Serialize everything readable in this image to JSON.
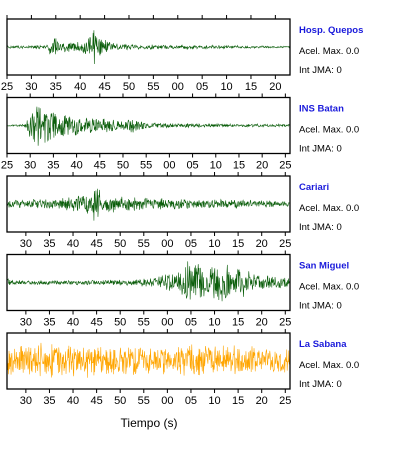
{
  "chart_data": {
    "type": "line",
    "xlabel": "Tiempo (s)",
    "colors": {
      "trace_green": "#0b5e0b",
      "trace_orange": "#ffa500",
      "station_name": "#1a1adb",
      "frame": "#000000"
    },
    "panels": [
      {
        "station": "Hosp. Quepos",
        "accel_label": "Acel. Max. 0.0",
        "jma_label": "Int JMA: 0",
        "color": "#0b5e0b",
        "tick_labels": [
          "25",
          "30",
          "35",
          "40",
          "45",
          "50",
          "55",
          "00",
          "05",
          "10",
          "15",
          "20"
        ],
        "xlim": [
          25,
          83
        ],
        "envelope": [
          {
            "x": 25,
            "a": 0.06
          },
          {
            "x": 33,
            "a": 0.07
          },
          {
            "x": 34,
            "a": 0.35
          },
          {
            "x": 35,
            "a": 0.45
          },
          {
            "x": 36,
            "a": 0.2
          },
          {
            "x": 40,
            "a": 0.22
          },
          {
            "x": 42,
            "a": 0.5
          },
          {
            "x": 43,
            "a": 0.9
          },
          {
            "x": 44,
            "a": 0.55
          },
          {
            "x": 46,
            "a": 0.2
          },
          {
            "x": 52,
            "a": 0.1
          },
          {
            "x": 83,
            "a": 0.04
          }
        ]
      },
      {
        "station": "INS Batan",
        "accel_label": "Acel. Max. 0.0",
        "jma_label": "Int JMA: 0",
        "color": "#0b5e0b",
        "tick_labels": [
          "25",
          "30",
          "35",
          "40",
          "45",
          "50",
          "55",
          "00",
          "05",
          "10",
          "15",
          "20",
          "25"
        ],
        "xlim": [
          25,
          86
        ],
        "envelope": [
          {
            "x": 25,
            "a": 0.03
          },
          {
            "x": 29,
            "a": 0.05
          },
          {
            "x": 30,
            "a": 0.6
          },
          {
            "x": 31,
            "a": 0.95
          },
          {
            "x": 33,
            "a": 0.75
          },
          {
            "x": 35,
            "a": 0.6
          },
          {
            "x": 37,
            "a": 0.5
          },
          {
            "x": 40,
            "a": 0.4
          },
          {
            "x": 45,
            "a": 0.3
          },
          {
            "x": 50,
            "a": 0.2
          },
          {
            "x": 52,
            "a": 0.32
          },
          {
            "x": 55,
            "a": 0.12
          },
          {
            "x": 65,
            "a": 0.08
          },
          {
            "x": 86,
            "a": 0.05
          }
        ]
      },
      {
        "station": "Cariari",
        "accel_label": "Acel. Max. 0.0",
        "jma_label": "Int JMA: 0",
        "color": "#0b5e0b",
        "tick_labels": [
          "30",
          "35",
          "40",
          "45",
          "50",
          "55",
          "00",
          "05",
          "10",
          "15",
          "20",
          "25"
        ],
        "xlim": [
          26,
          86
        ],
        "envelope": [
          {
            "x": 26,
            "a": 0.15
          },
          {
            "x": 35,
            "a": 0.22
          },
          {
            "x": 40,
            "a": 0.3
          },
          {
            "x": 44,
            "a": 0.5
          },
          {
            "x": 45,
            "a": 0.95
          },
          {
            "x": 46,
            "a": 0.6
          },
          {
            "x": 48,
            "a": 0.35
          },
          {
            "x": 52,
            "a": 0.3
          },
          {
            "x": 60,
            "a": 0.22
          },
          {
            "x": 70,
            "a": 0.18
          },
          {
            "x": 80,
            "a": 0.15
          },
          {
            "x": 86,
            "a": 0.12
          }
        ]
      },
      {
        "station": "San Miguel",
        "accel_label": "Acel. Max. 0.0",
        "jma_label": "Int JMA: 0",
        "color": "#0b5e0b",
        "tick_labels": [
          "30",
          "35",
          "40",
          "45",
          "50",
          "55",
          "00",
          "05",
          "10",
          "15",
          "20",
          "25"
        ],
        "xlim": [
          26,
          86
        ],
        "envelope": [
          {
            "x": 26,
            "a": 0.25
          },
          {
            "x": 27,
            "a": 0.1
          },
          {
            "x": 35,
            "a": 0.08
          },
          {
            "x": 45,
            "a": 0.1
          },
          {
            "x": 52,
            "a": 0.12
          },
          {
            "x": 58,
            "a": 0.25
          },
          {
            "x": 62,
            "a": 0.5
          },
          {
            "x": 64,
            "a": 0.95
          },
          {
            "x": 68,
            "a": 0.7
          },
          {
            "x": 72,
            "a": 0.85
          },
          {
            "x": 76,
            "a": 0.6
          },
          {
            "x": 80,
            "a": 0.35
          },
          {
            "x": 86,
            "a": 0.2
          }
        ]
      },
      {
        "station": "La Sabana",
        "accel_label": "Acel. Max. 0.0",
        "jma_label": "Int JMA: 0",
        "color": "#ffa500",
        "tick_labels": [
          "30",
          "35",
          "40",
          "45",
          "50",
          "55",
          "00",
          "05",
          "10",
          "15",
          "20",
          "25"
        ],
        "xlim": [
          26,
          86
        ],
        "envelope": [
          {
            "x": 26,
            "a": 0.6
          },
          {
            "x": 35,
            "a": 0.75
          },
          {
            "x": 45,
            "a": 0.65
          },
          {
            "x": 55,
            "a": 0.6
          },
          {
            "x": 65,
            "a": 0.7
          },
          {
            "x": 75,
            "a": 0.6
          },
          {
            "x": 86,
            "a": 0.55
          }
        ]
      }
    ]
  }
}
